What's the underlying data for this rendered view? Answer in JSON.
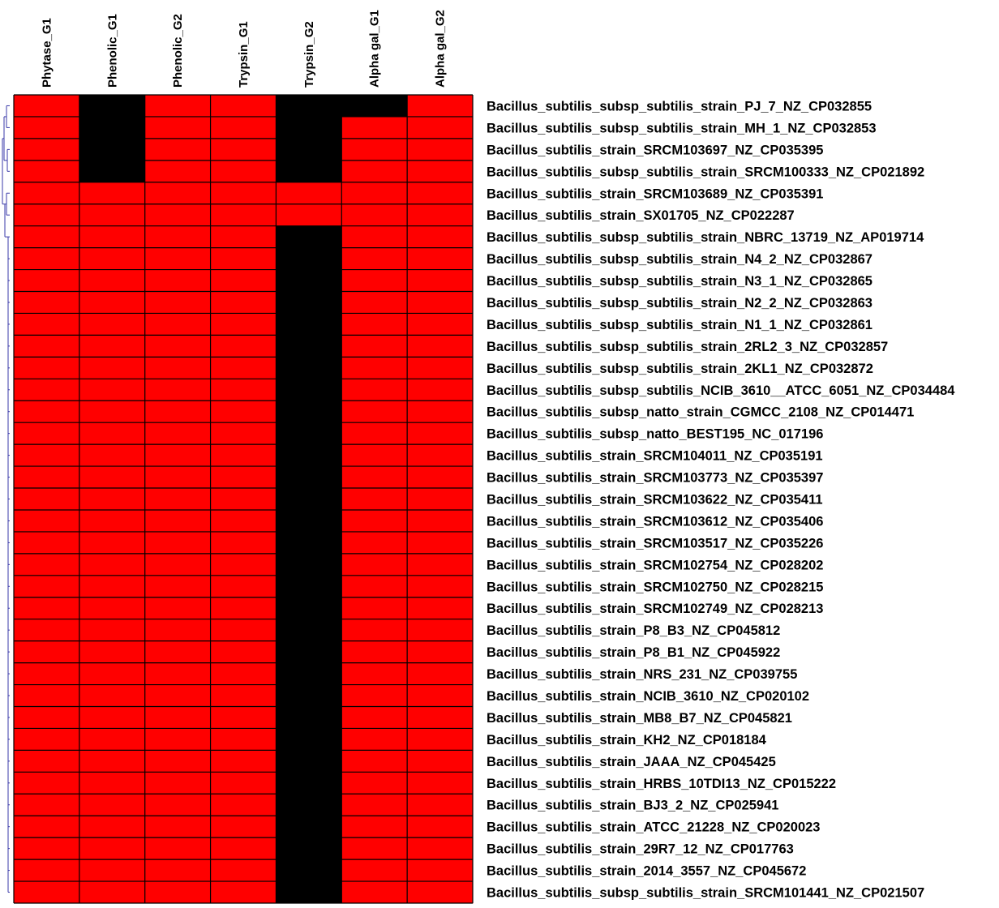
{
  "colors": {
    "present": "#ff0000",
    "absent": "#000000",
    "grid": "#000000",
    "dendrogram": "#3a3aa8"
  },
  "chart_data": {
    "type": "heatmap",
    "title": "",
    "xlabel": "",
    "ylabel": "",
    "columns": [
      "Phytase_G1",
      "Phenolic_G1",
      "Phenolic_G2",
      "Trypsin_G1",
      "Trypsin_G2",
      "Alpha gal_G1",
      "Alpha gal_G2"
    ],
    "rows": [
      "Bacillus_subtilis_subsp_subtilis_strain_PJ_7_NZ_CP032855",
      "Bacillus_subtilis_subsp_subtilis_strain_MH_1_NZ_CP032853",
      "Bacillus_subtilis_strain_SRCM103697_NZ_CP035395",
      "Bacillus_subtilis_subsp_subtilis_strain_SRCM100333_NZ_CP021892",
      "Bacillus_subtilis_strain_SRCM103689_NZ_CP035391",
      "Bacillus_subtilis_strain_SX01705_NZ_CP022287",
      "Bacillus_subtilis_subsp_subtilis_strain_NBRC_13719_NZ_AP019714",
      "Bacillus_subtilis_subsp_subtilis_strain_N4_2_NZ_CP032867",
      "Bacillus_subtilis_subsp_subtilis_strain_N3_1_NZ_CP032865",
      "Bacillus_subtilis_subsp_subtilis_strain_N2_2_NZ_CP032863",
      "Bacillus_subtilis_subsp_subtilis_strain_N1_1_NZ_CP032861",
      "Bacillus_subtilis_subsp_subtilis_strain_2RL2_3_NZ_CP032857",
      "Bacillus_subtilis_subsp_subtilis_strain_2KL1_NZ_CP032872",
      "Bacillus_subtilis_subsp_subtilis_NCIB_3610__ATCC_6051_NZ_CP034484",
      "Bacillus_subtilis_subsp_natto_strain_CGMCC_2108_NZ_CP014471",
      "Bacillus_subtilis_subsp_natto_BEST195_NC_017196",
      "Bacillus_subtilis_strain_SRCM104011_NZ_CP035191",
      "Bacillus_subtilis_strain_SRCM103773_NZ_CP035397",
      "Bacillus_subtilis_strain_SRCM103622_NZ_CP035411",
      "Bacillus_subtilis_strain_SRCM103612_NZ_CP035406",
      "Bacillus_subtilis_strain_SRCM103517_NZ_CP035226",
      "Bacillus_subtilis_strain_SRCM102754_NZ_CP028202",
      "Bacillus_subtilis_strain_SRCM102750_NZ_CP028215",
      "Bacillus_subtilis_strain_SRCM102749_NZ_CP028213",
      "Bacillus_subtilis_strain_P8_B3_NZ_CP045812",
      "Bacillus_subtilis_strain_P8_B1_NZ_CP045922",
      "Bacillus_subtilis_strain_NRS_231_NZ_CP039755",
      "Bacillus_subtilis_strain_NCIB_3610_NZ_CP020102",
      "Bacillus_subtilis_strain_MB8_B7_NZ_CP045821",
      "Bacillus_subtilis_strain_KH2_NZ_CP018184",
      "Bacillus_subtilis_strain_JAAA_NZ_CP045425",
      "Bacillus_subtilis_strain_HRBS_10TDI13_NZ_CP015222",
      "Bacillus_subtilis_strain_BJ3_2_NZ_CP025941",
      "Bacillus_subtilis_strain_ATCC_21228_NZ_CP020023",
      "Bacillus_subtilis_strain_29R7_12_NZ_CP017763",
      "Bacillus_subtilis_strain_2014_3557_NZ_CP045672",
      "Bacillus_subtilis_subsp_subtilis_strain_SRCM101441_NZ_CP021507"
    ],
    "values": [
      [
        1,
        0,
        1,
        1,
        0,
        0,
        1
      ],
      [
        1,
        0,
        1,
        1,
        0,
        1,
        1
      ],
      [
        1,
        0,
        1,
        1,
        0,
        1,
        1
      ],
      [
        1,
        0,
        1,
        1,
        0,
        1,
        1
      ],
      [
        1,
        1,
        1,
        1,
        1,
        1,
        1
      ],
      [
        1,
        1,
        1,
        1,
        1,
        1,
        1
      ],
      [
        1,
        1,
        1,
        1,
        0,
        1,
        1
      ],
      [
        1,
        1,
        1,
        1,
        0,
        1,
        1
      ],
      [
        1,
        1,
        1,
        1,
        0,
        1,
        1
      ],
      [
        1,
        1,
        1,
        1,
        0,
        1,
        1
      ],
      [
        1,
        1,
        1,
        1,
        0,
        1,
        1
      ],
      [
        1,
        1,
        1,
        1,
        0,
        1,
        1
      ],
      [
        1,
        1,
        1,
        1,
        0,
        1,
        1
      ],
      [
        1,
        1,
        1,
        1,
        0,
        1,
        1
      ],
      [
        1,
        1,
        1,
        1,
        0,
        1,
        1
      ],
      [
        1,
        1,
        1,
        1,
        0,
        1,
        1
      ],
      [
        1,
        1,
        1,
        1,
        0,
        1,
        1
      ],
      [
        1,
        1,
        1,
        1,
        0,
        1,
        1
      ],
      [
        1,
        1,
        1,
        1,
        0,
        1,
        1
      ],
      [
        1,
        1,
        1,
        1,
        0,
        1,
        1
      ],
      [
        1,
        1,
        1,
        1,
        0,
        1,
        1
      ],
      [
        1,
        1,
        1,
        1,
        0,
        1,
        1
      ],
      [
        1,
        1,
        1,
        1,
        0,
        1,
        1
      ],
      [
        1,
        1,
        1,
        1,
        0,
        1,
        1
      ],
      [
        1,
        1,
        1,
        1,
        0,
        1,
        1
      ],
      [
        1,
        1,
        1,
        1,
        0,
        1,
        1
      ],
      [
        1,
        1,
        1,
        1,
        0,
        1,
        1
      ],
      [
        1,
        1,
        1,
        1,
        0,
        1,
        1
      ],
      [
        1,
        1,
        1,
        1,
        0,
        1,
        1
      ],
      [
        1,
        1,
        1,
        1,
        0,
        1,
        1
      ],
      [
        1,
        1,
        1,
        1,
        0,
        1,
        1
      ],
      [
        1,
        1,
        1,
        1,
        0,
        1,
        1
      ],
      [
        1,
        1,
        1,
        1,
        0,
        1,
        1
      ],
      [
        1,
        1,
        1,
        1,
        0,
        1,
        1
      ],
      [
        1,
        1,
        1,
        1,
        0,
        1,
        1
      ],
      [
        1,
        1,
        1,
        1,
        0,
        1,
        1
      ],
      [
        1,
        1,
        1,
        1,
        0,
        1,
        1
      ]
    ],
    "value_legend": {
      "1": "present",
      "0": "absent"
    },
    "grid": true,
    "legend": "none",
    "dendrogram": "left"
  }
}
